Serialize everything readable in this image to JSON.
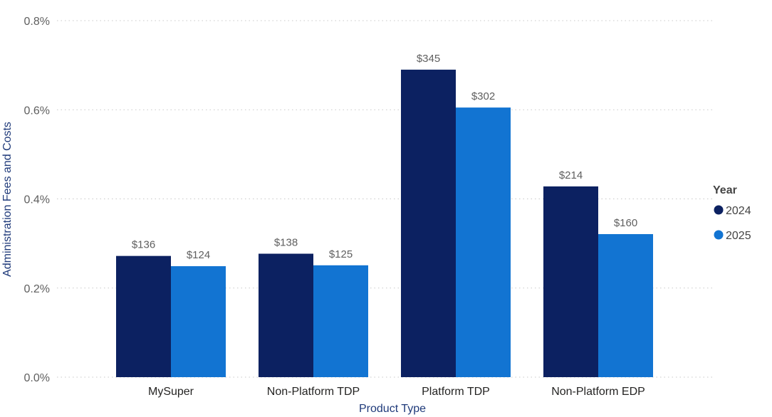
{
  "chart_data": {
    "type": "bar",
    "categories": [
      "MySuper",
      "Non-Platform TDP",
      "Platform TDP",
      "Non-Platform EDP"
    ],
    "series": [
      {
        "name": "2024",
        "color": "#0c2161",
        "values": [
          0.272,
          0.277,
          0.69,
          0.428
        ],
        "labels": [
          "$136",
          "$138",
          "$345",
          "$214"
        ]
      },
      {
        "name": "2025",
        "color": "#1274d2",
        "values": [
          0.249,
          0.251,
          0.605,
          0.321
        ],
        "labels": [
          "$124",
          "$125",
          "$302",
          "$160"
        ]
      }
    ],
    "title": "",
    "xlabel": "Product Type",
    "ylabel": "Administration Fees and Costs",
    "ylim": [
      0,
      0.8
    ],
    "yticks": [
      0,
      0.2,
      0.4,
      0.6,
      0.8
    ],
    "ytick_labels": [
      "0.0%",
      "0.2%",
      "0.4%",
      "0.6%",
      "0.8%"
    ],
    "grid": true,
    "legend": {
      "title": "Year",
      "position": "right"
    }
  }
}
